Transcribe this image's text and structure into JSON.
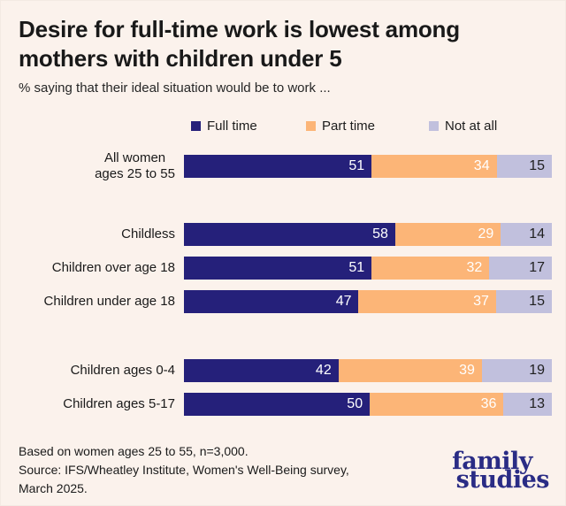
{
  "page": {
    "background_color": "#FBF2EC"
  },
  "header": {
    "title": "Desire for full-time work is lowest among mothers with children under 5",
    "subtitle": "% saying that their ideal situation would be to work ..."
  },
  "legend": [
    {
      "label": "Full time",
      "color": "#25207A"
    },
    {
      "label": "Part time",
      "color": "#FCB577"
    },
    {
      "label": "Not at all",
      "color": "#C1C0DD"
    }
  ],
  "chart_data": {
    "type": "bar",
    "orientation": "horizontal",
    "stacked": true,
    "unit": "%",
    "xlim": [
      0,
      100
    ],
    "grid": false,
    "legend_position": "top",
    "series_names": [
      "Full time",
      "Part time",
      "Not at all"
    ],
    "series_colors": [
      "#25207A",
      "#FCB577",
      "#C1C0DD"
    ],
    "value_label_colors": [
      "#ffffff",
      "#ffffff",
      "#1f1f1f"
    ],
    "groups": [
      {
        "rows": [
          {
            "label": "All women ages 25 to 55",
            "label_lines": [
              "All women",
              "ages 25 to 55"
            ],
            "values": [
              51,
              34,
              15
            ]
          }
        ]
      },
      {
        "rows": [
          {
            "label": "Childless",
            "values": [
              58,
              29,
              14
            ]
          },
          {
            "label": "Children over age 18",
            "values": [
              51,
              32,
              17
            ]
          },
          {
            "label": "Children under age 18",
            "values": [
              47,
              37,
              15
            ]
          }
        ]
      },
      {
        "rows": [
          {
            "label": "Children ages 0-4",
            "values": [
              42,
              39,
              19
            ]
          },
          {
            "label": "Children ages 5-17",
            "values": [
              50,
              36,
              13
            ]
          }
        ]
      }
    ]
  },
  "footer": {
    "lines": [
      "Based on women ages 25 to 55, n=3,000.",
      "Source: IFS/Wheatley Institute, Women's Well-Being survey,",
      "March 2025."
    ],
    "logo": {
      "line1": "family",
      "line2": "studies"
    }
  }
}
